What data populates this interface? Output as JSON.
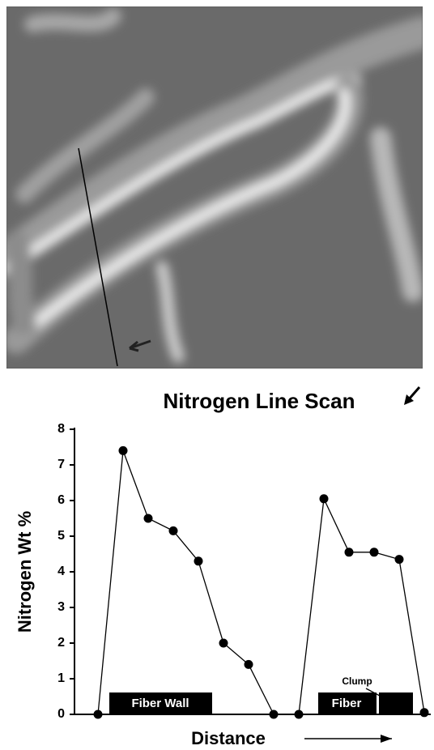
{
  "chart_data": {
    "type": "line",
    "title": "Nitrogen Line Scan",
    "y_label": "Nitrogen Wt %",
    "x_label": "Distance",
    "categories": [
      null,
      null,
      null,
      null,
      null,
      null,
      null,
      null,
      null,
      null,
      null,
      null,
      null,
      null
    ],
    "values": [
      0,
      7.4,
      5.5,
      5.15,
      4.3,
      2.0,
      1.4,
      0,
      0,
      6.05,
      4.55,
      4.55,
      4.35,
      0.05
    ],
    "color": "#000000",
    "ylim": [
      0,
      8
    ],
    "yticks": [
      0,
      1,
      2,
      3,
      4,
      5,
      6,
      7,
      8
    ],
    "grid": false,
    "annotations": [
      "Fiber Wall",
      "Fiber",
      "Clump"
    ]
  }
}
